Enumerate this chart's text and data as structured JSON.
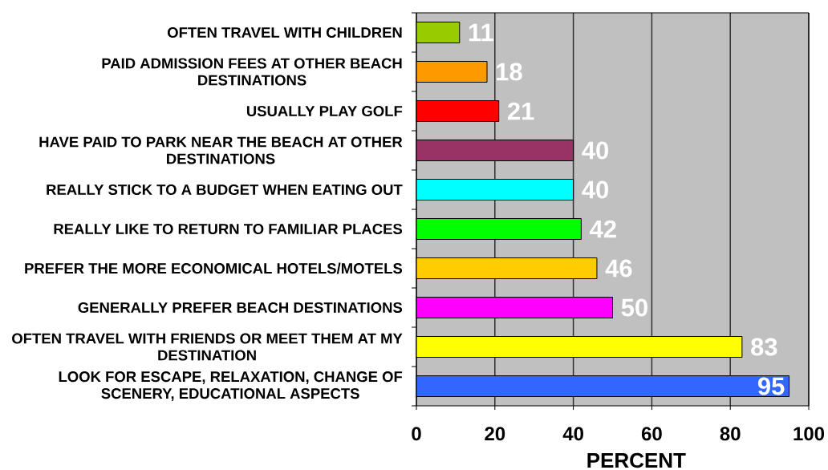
{
  "chart_data": {
    "type": "bar",
    "orientation": "horizontal",
    "xlabel": "PERCENT",
    "categories": [
      "OFTEN TRAVEL WITH CHILDREN",
      "PAID ADMISSION FEES AT OTHER BEACH DESTINATIONS",
      "USUALLY PLAY GOLF",
      "HAVE PAID TO PARK NEAR THE BEACH AT OTHER DESTINATIONS",
      "REALLY STICK TO A BUDGET WHEN EATING OUT",
      "REALLY LIKE TO RETURN TO FAMILIAR PLACES",
      "PREFER THE MORE ECONOMICAL HOTELS/MOTELS",
      "GENERALLY PREFER BEACH DESTINATIONS",
      "OFTEN TRAVEL WITH FRIENDS OR MEET THEM AT MY DESTINATION",
      "LOOK FOR ESCAPE, RELAXATION, CHANGE OF SCENERY, EDUCATIONAL ASPECTS"
    ],
    "values": [
      11,
      18,
      21,
      40,
      40,
      42,
      46,
      50,
      83,
      95
    ],
    "colors": [
      "#99cc00",
      "#ff9900",
      "#ff0000",
      "#993366",
      "#00ffff",
      "#00ff00",
      "#ffcc00",
      "#ff00ff",
      "#ffff00",
      "#3366ff"
    ],
    "xlim": [
      0,
      100
    ],
    "xticks": [
      0,
      20,
      40,
      60,
      80,
      100
    ],
    "grid": "x",
    "data_labels": true
  }
}
